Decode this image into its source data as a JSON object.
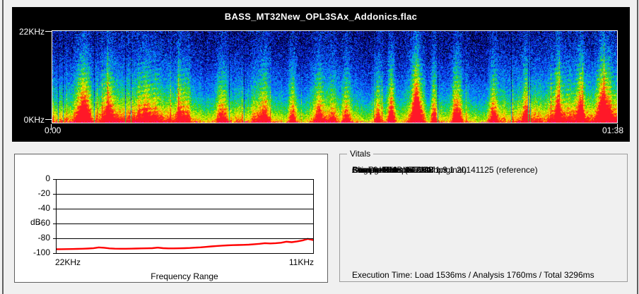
{
  "colors": {
    "window_bg": "#f0f0f0",
    "panel_black": "#000000",
    "label_white": "#ffffff",
    "text_black": "#000000",
    "line_red": "#ff0000",
    "groupbox_border": "#9c9c9c",
    "panel_border": "#5f5f5f"
  },
  "spectrogram": {
    "title": "BASS_MT32New_OPL3SAx_Addonics.flac",
    "y_top_label": "22KHz",
    "y_bottom_label": "0KHz",
    "t_start_label": "0:00",
    "t_end_label": "01:38",
    "colormap": [
      {
        "t": 0.0,
        "c": "#000010"
      },
      {
        "t": 0.12,
        "c": "#00007e"
      },
      {
        "t": 0.26,
        "c": "#1438ff"
      },
      {
        "t": 0.4,
        "c": "#00a0ff"
      },
      {
        "t": 0.52,
        "c": "#00dc96"
      },
      {
        "t": 0.6,
        "c": "#28d200"
      },
      {
        "t": 0.7,
        "c": "#aadc00"
      },
      {
        "t": 0.79,
        "c": "#ffff00"
      },
      {
        "t": 0.87,
        "c": "#ff9600"
      },
      {
        "t": 0.95,
        "c": "#ff1e00"
      },
      {
        "t": 1.0,
        "c": "#ff00c8"
      }
    ]
  },
  "chart_data": {
    "type": "line",
    "title": "",
    "xlabel": "Frequency Range",
    "ylabel": "dB",
    "x_start_label": "22KHz",
    "x_end_label": "11KHz",
    "x_start_khz": 22,
    "x_end_khz": 11,
    "y_ticks": [
      0,
      -20,
      -40,
      -60,
      -80,
      -100
    ],
    "ylim": [
      -100,
      0
    ],
    "grid": true,
    "series": [
      {
        "name": "noise-floor-db",
        "color": "#ff0000",
        "values": [
          -94.8,
          -94.7,
          -94.6,
          -94.5,
          -94.3,
          -94.1,
          -93.8,
          -93.4,
          -92.3,
          -92.8,
          -93.6,
          -94.0,
          -94.1,
          -94.1,
          -94.0,
          -93.8,
          -93.6,
          -93.5,
          -93.3,
          -92.6,
          -93.3,
          -93.6,
          -93.6,
          -93.5,
          -93.3,
          -93.0,
          -92.6,
          -92.2,
          -91.6,
          -91.0,
          -90.4,
          -89.9,
          -89.5,
          -89.2,
          -89.0,
          -88.9,
          -88.6,
          -88.0,
          -87.4,
          -86.6,
          -87.0,
          -86.6,
          -86.0,
          -84.6,
          -85.2,
          -84.2,
          -83.0,
          -80.8,
          -82.4
        ]
      }
    ]
  },
  "vitals": {
    "title": "Vitals",
    "items": [
      "Sample Rate: 44KHz",
      "Channels: 2",
      "Bits Per Sample: 16",
      "Size: 8.44MB (51% of original)",
      "Original Size: 16.5MB",
      "Average Bitrate: 722kbps",
      "Compressor: libFLAC 1.3.1 20141125 (reference)"
    ],
    "execution_time": "Execution Time: Load 1536ms / Analysis 1760ms / Total 3296ms"
  }
}
